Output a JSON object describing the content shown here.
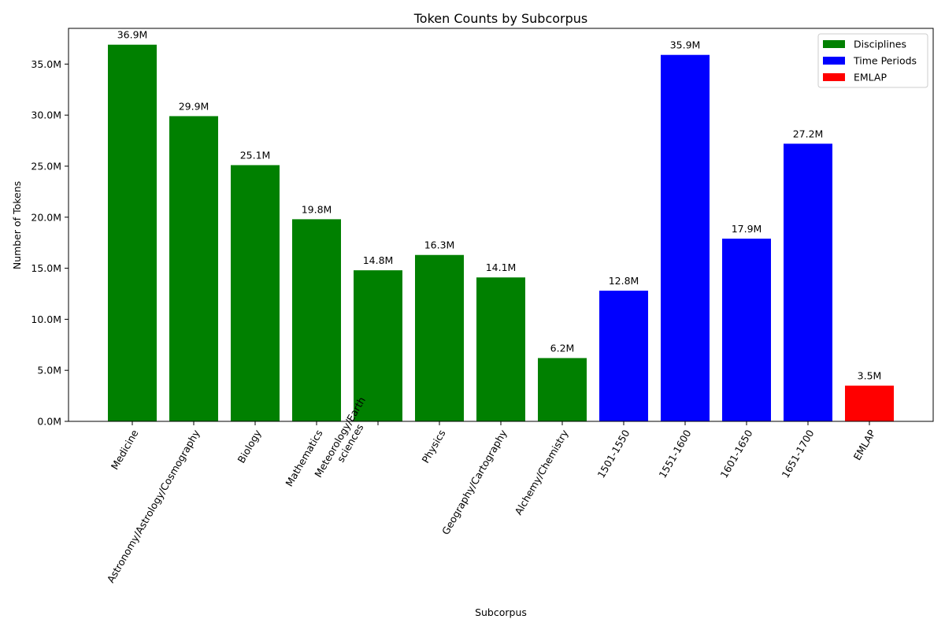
{
  "chart_data": {
    "type": "bar",
    "title": "Token Counts by Subcorpus",
    "xlabel": "Subcorpus",
    "ylabel": "Number of Tokens",
    "ylim": [
      0,
      38.5
    ],
    "y_ticks": [
      0,
      5,
      10,
      15,
      20,
      25,
      30,
      35
    ],
    "y_tick_labels": [
      "0.0M",
      "5.0M",
      "10.0M",
      "15.0M",
      "20.0M",
      "25.0M",
      "30.0M",
      "35.0M"
    ],
    "y_unit": "millions of tokens",
    "grid": false,
    "legend_position": "top-right",
    "categories": [
      "Medicine",
      "Astronomy/Astrology/Cosmography",
      "Biology",
      "Mathematics",
      "Meteorology/Earth\nsciences",
      "Physics",
      "Geography/Cartography",
      "Alchemy/Chemistry",
      "1501-1550",
      "1551-1600",
      "1601-1650",
      "1651-1700",
      "EMLAP"
    ],
    "values": [
      36.9,
      29.9,
      25.1,
      19.8,
      14.8,
      16.3,
      14.1,
      6.2,
      12.8,
      35.9,
      17.9,
      27.2,
      3.5
    ],
    "value_labels": [
      "36.9M",
      "29.9M",
      "25.1M",
      "19.8M",
      "14.8M",
      "16.3M",
      "14.1M",
      "6.2M",
      "12.8M",
      "35.9M",
      "17.9M",
      "27.2M",
      "3.5M"
    ],
    "groups": [
      0,
      0,
      0,
      0,
      0,
      0,
      0,
      0,
      1,
      1,
      1,
      1,
      2
    ],
    "legend": [
      {
        "name": "Disciplines",
        "color": "#008000"
      },
      {
        "name": "Time Periods",
        "color": "#0000ff"
      },
      {
        "name": "EMLAP",
        "color": "#ff0000"
      }
    ]
  }
}
